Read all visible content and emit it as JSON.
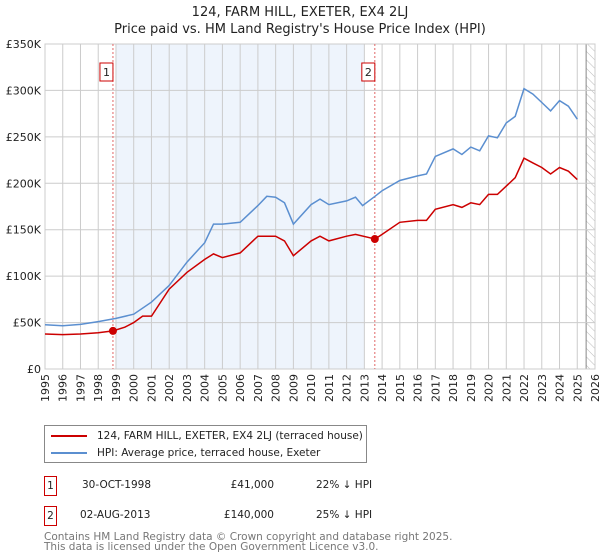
{
  "title_line1": "124, FARM HILL, EXETER, EX4 2LJ",
  "title_line2": "Price paid vs. HM Land Registry's House Price Index (HPI)",
  "chart_data": {
    "type": "line",
    "title": "124, FARM HILL, EXETER, EX4 2LJ — Price paid vs. HM Land Registry's House Price Index (HPI)",
    "xlim": [
      1995,
      2026
    ],
    "ylim": [
      0,
      350000
    ],
    "x_ticks": [
      1995,
      1996,
      1997,
      1998,
      1999,
      2000,
      2001,
      2002,
      2003,
      2004,
      2005,
      2006,
      2007,
      2008,
      2009,
      2010,
      2011,
      2012,
      2013,
      2014,
      2015,
      2016,
      2017,
      2018,
      2019,
      2020,
      2021,
      2022,
      2023,
      2024,
      2025,
      2026
    ],
    "y_ticks": [
      {
        "v": 0,
        "label": "£0"
      },
      {
        "v": 50000,
        "label": "£50K"
      },
      {
        "v": 100000,
        "label": "£100K"
      },
      {
        "v": 150000,
        "label": "£150K"
      },
      {
        "v": 200000,
        "label": "£200K"
      },
      {
        "v": 250000,
        "label": "£250K"
      },
      {
        "v": 300000,
        "label": "£300K"
      },
      {
        "v": 350000,
        "label": "£350K"
      }
    ],
    "grid": true,
    "shaded_range": [
      1999,
      2013
    ],
    "hatched_from": 2025.5,
    "colors": {
      "property": "#cc0000",
      "hpi": "#5b8fd0",
      "shade": "#eef4fc"
    },
    "series": [
      {
        "name": "124, FARM HILL, EXETER, EX4 2LJ (terraced house)",
        "key": "property",
        "x": [
          1995,
          1996,
          1997,
          1998,
          1998.83,
          1999.5,
          2000,
          2000.5,
          2001,
          2002,
          2003,
          2004,
          2004.5,
          2005,
          2006,
          2007,
          2008,
          2008.5,
          2009,
          2010,
          2010.5,
          2011,
          2012,
          2012.5,
          2013.6,
          2014,
          2015,
          2016,
          2016.5,
          2017,
          2018,
          2018.5,
          2019,
          2019.5,
          2020,
          2020.5,
          2021,
          2021.5,
          2022,
          2022.5,
          2023,
          2023.5,
          2024,
          2024.5,
          2025
        ],
        "y": [
          37700,
          37000,
          37700,
          39000,
          41000,
          45000,
          50000,
          57000,
          57000,
          86000,
          104000,
          118000,
          124000,
          120000,
          125000,
          143000,
          143000,
          138000,
          122000,
          138000,
          143000,
          138000,
          143000,
          145000,
          140000,
          145000,
          158000,
          160000,
          160000,
          172000,
          177000,
          174000,
          179000,
          177000,
          188000,
          188000,
          197000,
          206000,
          227000,
          222000,
          217000,
          210000,
          217000,
          213000,
          204000
        ]
      },
      {
        "name": "HPI: Average price, terraced house, Exeter",
        "key": "hpi",
        "x": [
          1995,
          1996,
          1997,
          1998,
          1999,
          2000,
          2001,
          2002,
          2003,
          2004,
          2004.5,
          2005,
          2006,
          2007,
          2007.5,
          2008,
          2008.5,
          2009,
          2010,
          2010.5,
          2011,
          2012,
          2012.5,
          2012.9,
          2013.6,
          2014,
          2015,
          2016,
          2016.5,
          2017,
          2018,
          2018.5,
          2019,
          2019.5,
          2020,
          2020.5,
          2021,
          2021.5,
          2022,
          2022.5,
          2023,
          2023.5,
          2024,
          2024.5,
          2025
        ],
        "y": [
          47700,
          46600,
          48000,
          51000,
          54500,
          59000,
          72000,
          90000,
          115000,
          136000,
          156000,
          156000,
          158000,
          176000,
          186000,
          185000,
          179000,
          156000,
          177000,
          183000,
          177000,
          181000,
          185000,
          176000,
          186000,
          192000,
          203000,
          208000,
          210000,
          229000,
          237000,
          231000,
          239000,
          235000,
          251000,
          249000,
          265000,
          272000,
          302000,
          296000,
          287000,
          278000,
          289000,
          283000,
          269000
        ]
      }
    ],
    "sales": [
      {
        "id": "1",
        "x": 1998.83,
        "y": 41000
      },
      {
        "id": "2",
        "x": 2013.59,
        "y": 140000
      }
    ]
  },
  "legend": {
    "property": "124, FARM HILL, EXETER, EX4 2LJ (terraced house)",
    "hpi": "HPI: Average price, terraced house, Exeter"
  },
  "transactions": [
    {
      "id": "1",
      "date": "30-OCT-1998",
      "price": "£41,000",
      "diff": "22% ↓ HPI"
    },
    {
      "id": "2",
      "date": "02-AUG-2013",
      "price": "£140,000",
      "diff": "25% ↓ HPI"
    }
  ],
  "footer": {
    "line1": "Contains HM Land Registry data © Crown copyright and database right 2025.",
    "line2": "This data is licensed under the Open Government Licence v3.0."
  }
}
